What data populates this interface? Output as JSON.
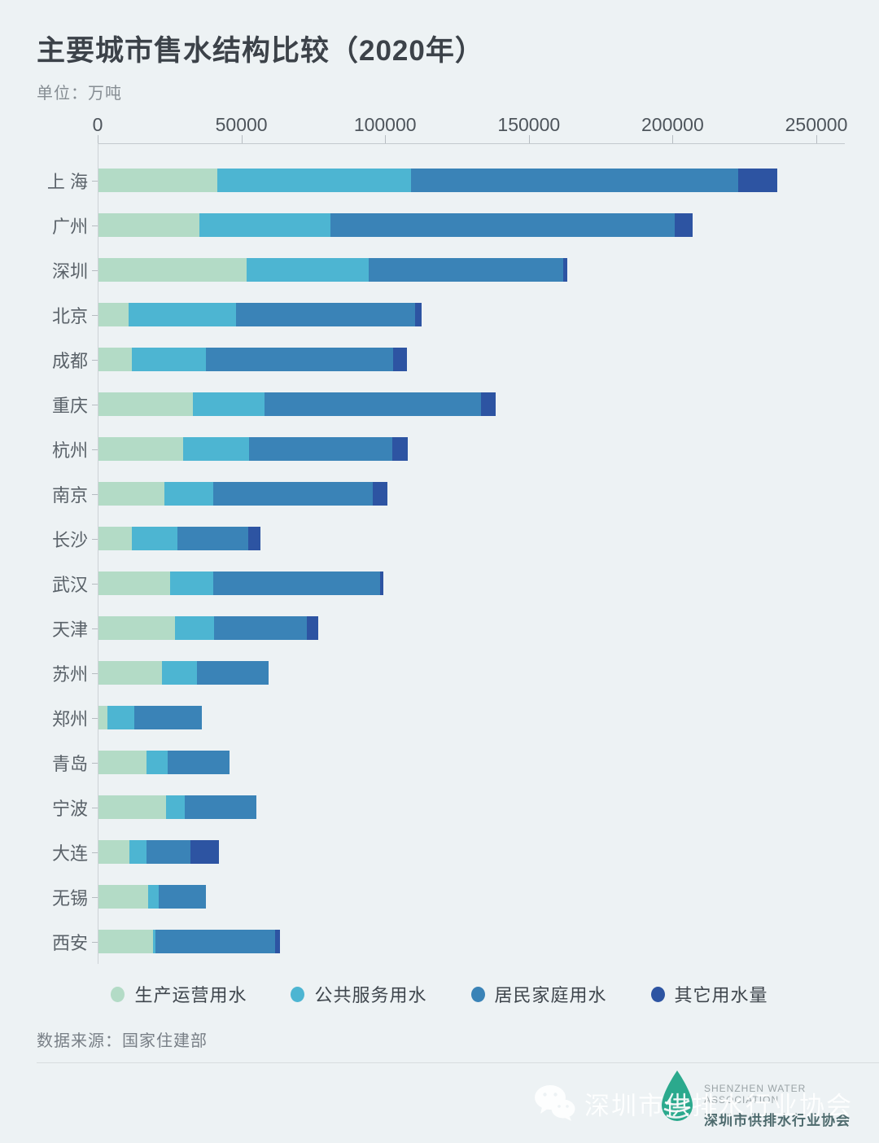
{
  "title": "主要城市售水结构比较（2020年）",
  "subtitle": "单位：万吨",
  "source": "数据来源：国家住建部",
  "colors": {
    "production": "#b3dbc6",
    "public_service": "#4db5d2",
    "household": "#3a83b7",
    "other": "#2d54a2",
    "background": "#edf2f4"
  },
  "chart_data": {
    "type": "bar",
    "orientation": "horizontal",
    "stacked": true,
    "title": "主要城市售水结构比较（2020年）",
    "unit": "万吨",
    "xlim": [
      0,
      250000
    ],
    "x_ticks": [
      "0",
      "50000",
      "100000",
      "150000",
      "200000",
      "250000"
    ],
    "grid": false,
    "legend_position": "bottom",
    "categories": [
      "上 海",
      "广州",
      "深圳",
      "北京",
      "成都",
      "重庆",
      "杭州",
      "南京",
      "长沙",
      "武汉",
      "天津",
      "苏州",
      "郑州",
      "青岛",
      "宁波",
      "大连",
      "无锡",
      "西安"
    ],
    "series": [
      {
        "name": "生产运营用水",
        "color": "#b3dbc6",
        "values": [
          41200,
          35100,
          51400,
          10600,
          11600,
          32800,
          29400,
          22800,
          11500,
          25000,
          26700,
          22000,
          3100,
          16700,
          23400,
          10700,
          17200,
          19000
        ]
      },
      {
        "name": "公共服务用水",
        "color": "#4db5d2",
        "values": [
          67500,
          45700,
          42600,
          37200,
          25700,
          25000,
          23100,
          17100,
          16100,
          14800,
          13400,
          12400,
          9300,
          7500,
          6600,
          6100,
          3800,
          800
        ]
      },
      {
        "name": "居民家庭用水",
        "color": "#3a83b7",
        "values": [
          113700,
          119600,
          67800,
          62300,
          65300,
          75400,
          49700,
          55600,
          24600,
          58300,
          32500,
          24800,
          23700,
          21400,
          25000,
          15300,
          16300,
          41600
        ]
      },
      {
        "name": "其它用水量",
        "color": "#2d54a2",
        "values": [
          13600,
          6200,
          1400,
          2200,
          4600,
          5000,
          5300,
          5000,
          4200,
          1000,
          3800,
          0,
          0,
          0,
          0,
          9900,
          0,
          1700
        ]
      }
    ]
  },
  "legend": [
    "生产运营用水",
    "公共服务用水",
    "居民家庭用水",
    "其它用水量"
  ],
  "footer": {
    "watermark": "深圳市供排水行业协会",
    "logo": {
      "en_line1": "SHENZHEN WATER",
      "en_line2": "ASSOCIATION",
      "cn": "深圳市供排水行业协会"
    }
  }
}
